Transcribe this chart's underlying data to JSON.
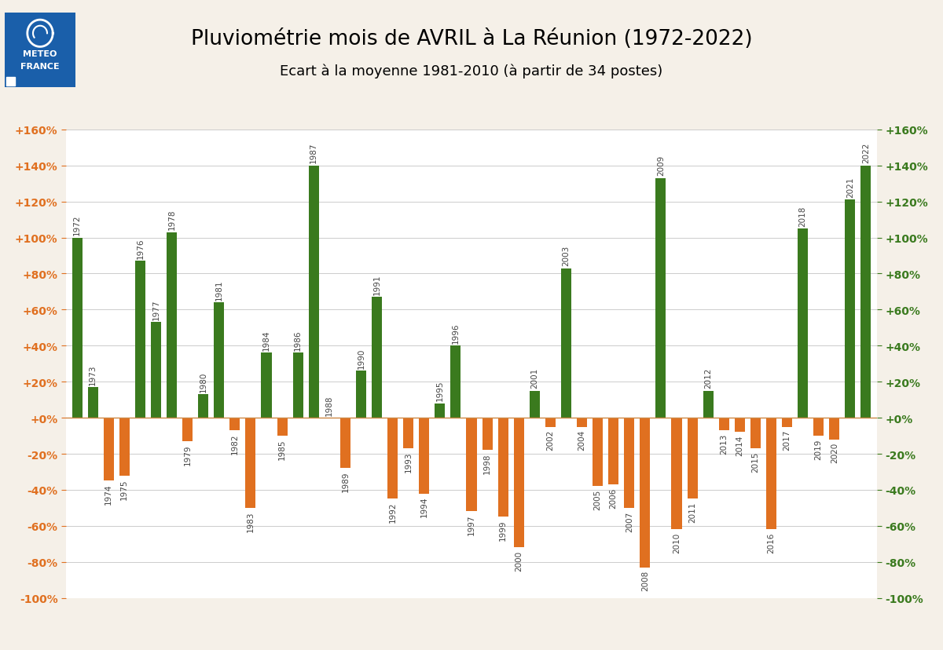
{
  "title": "Pluviométrie mois de AVRIL à La Réunion (1972-2022)",
  "subtitle": "Ecart à la moyenne 1981-2010 (à partir de 34 postes)",
  "years": [
    1972,
    1973,
    1974,
    1975,
    1976,
    1977,
    1978,
    1979,
    1980,
    1981,
    1982,
    1983,
    1984,
    1985,
    1986,
    1987,
    1988,
    1989,
    1990,
    1991,
    1992,
    1993,
    1994,
    1995,
    1996,
    1997,
    1998,
    1999,
    2000,
    2001,
    2002,
    2003,
    2004,
    2005,
    2006,
    2007,
    2008,
    2009,
    2010,
    2011,
    2012,
    2013,
    2014,
    2015,
    2016,
    2017,
    2018,
    2019,
    2020,
    2021,
    2022
  ],
  "values": [
    100,
    17,
    -35,
    -32,
    87,
    53,
    103,
    -13,
    13,
    64,
    -7,
    -50,
    36,
    -10,
    36,
    140,
    0,
    -28,
    26,
    67,
    -45,
    -17,
    -42,
    8,
    40,
    -52,
    -18,
    -55,
    -72,
    15,
    -5,
    83,
    -5,
    -38,
    -37,
    -50,
    -83,
    133,
    -62,
    -45,
    15,
    -7,
    -8,
    -17,
    -62,
    -5,
    105,
    -10,
    -12,
    121,
    140
  ],
  "positive_color": "#3a7a1e",
  "negative_color": "#e07020",
  "background_color": "#f5f0e8",
  "plot_background": "#ffffff",
  "grid_color": "#cccccc",
  "ylim": [
    -100,
    160
  ],
  "yticks": [
    -100,
    -80,
    -60,
    -40,
    -20,
    0,
    20,
    40,
    60,
    80,
    100,
    120,
    140,
    160
  ],
  "ytick_labels": [
    "-100%",
    "-80%",
    "-60%",
    "-40%",
    "-20%",
    "+0%",
    "+20%",
    "+40%",
    "+60%",
    "+80%",
    "+100%",
    "+120%",
    "+140%",
    "+160%"
  ],
  "left_ytick_color": "#e07020",
  "right_ytick_color": "#3a7a1e",
  "title_fontsize": 19,
  "subtitle_fontsize": 13,
  "bar_width": 0.65,
  "label_fontsize": 7.5,
  "logo_color": "#1a5faa"
}
